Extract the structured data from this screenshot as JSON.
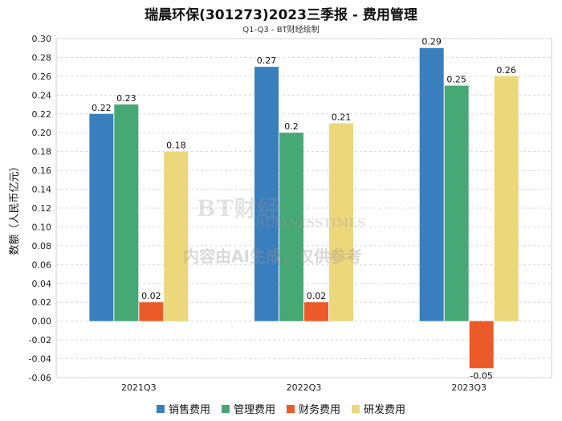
{
  "title": "瑞晨环保(301273)2023三季报 - 费用管理",
  "subtitle": "Q1-Q3 - BT财经绘制",
  "watermark": {
    "logo": "BT财经",
    "logo_sub": "BUSINESSTIMES",
    "note": "内容由AI生成，仅供参考"
  },
  "chart_data": {
    "type": "bar",
    "title": "瑞晨环保(301273)2023三季报 - 费用管理",
    "subtitle": "Q1-Q3 - BT财经绘制",
    "xlabel": "",
    "ylabel": "数额（人民币亿元）",
    "ylim": [
      -0.06,
      0.3
    ],
    "ytick_step": 0.02,
    "grid": true,
    "legend_position": "bottom",
    "categories": [
      "2021Q3",
      "2022Q3",
      "2023Q3"
    ],
    "series": [
      {
        "name": "销售费用",
        "color": "#3a7fbd",
        "values": [
          0.22,
          0.27,
          0.29
        ]
      },
      {
        "name": "管理费用",
        "color": "#46a874",
        "values": [
          0.23,
          0.2,
          0.25
        ]
      },
      {
        "name": "财务费用",
        "color": "#ec5a2a",
        "values": [
          0.02,
          0.02,
          -0.05
        ]
      },
      {
        "name": "研发费用",
        "color": "#ecd77a",
        "values": [
          0.18,
          0.21,
          0.26
        ]
      }
    ]
  }
}
